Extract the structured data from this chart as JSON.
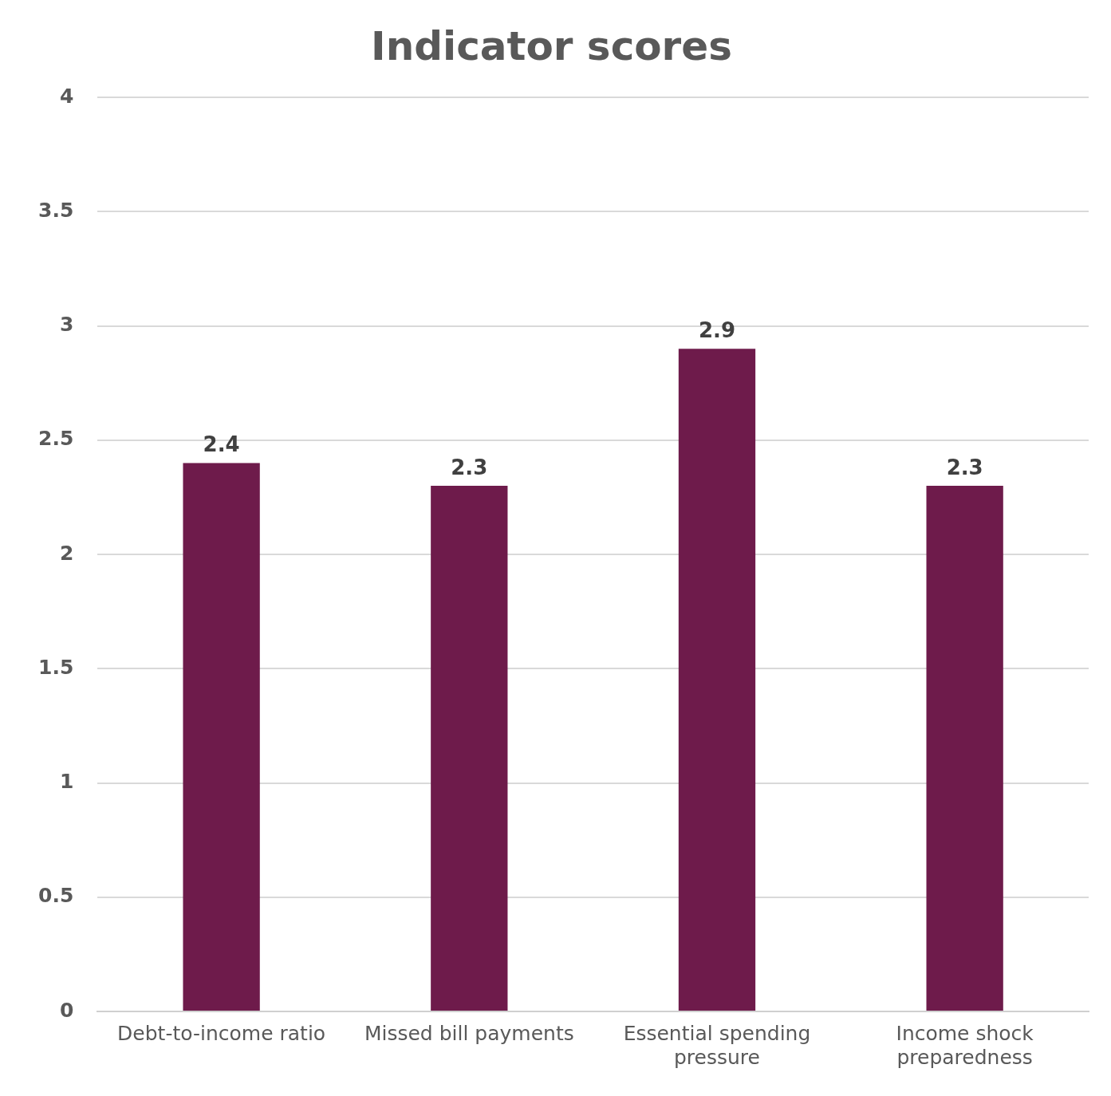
{
  "chart_data": {
    "type": "bar",
    "title": "Indicator scores",
    "categories": [
      "Debt-to-income ratio",
      "Missed bill payments",
      "Essential spending pressure",
      "Income shock preparedness"
    ],
    "values": [
      2.4,
      2.3,
      2.9,
      2.3
    ],
    "color": "#6e1b4b",
    "ylim": [
      0,
      4
    ],
    "yticks": [
      0,
      0.5,
      1,
      1.5,
      2,
      2.5,
      3,
      3.5,
      4
    ],
    "grid": "y",
    "data_labels": true
  }
}
